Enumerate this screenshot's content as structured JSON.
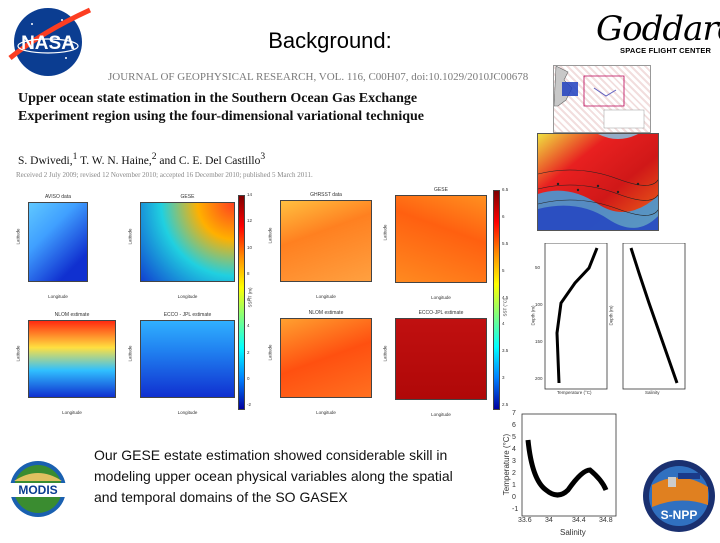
{
  "header": {
    "title": "Background:",
    "nasa_logo_text": "NASA",
    "goddard_name": "Goddard",
    "goddard_subtitle": "SPACE FLIGHT CENTER"
  },
  "paper": {
    "journal_line": "JOURNAL OF GEOPHYSICAL RESEARCH, VOL. 116, C00H07, doi:10.1029/2010JC006781, 20",
    "title": "Upper ocean state estimation in the Southern Ocean Gas Exchange Experiment region using the four-dimensional variational technique",
    "authors": "S. Dwivedi,",
    "authors_sup1": "1",
    "authors_rest": " T. W. N. Haine,",
    "authors_sup2": "2",
    "authors_rest2": " and C. E. Del Castillo",
    "authors_sup3": "3",
    "received": "Received 2 July 2009; revised 12 November 2010; accepted 16 December 2010; published 5 March 2011."
  },
  "figure": {
    "panels": [
      {
        "title": "AVISO data",
        "xlabel": "Longitude",
        "ylabel": "Latitude"
      },
      {
        "title": "GESE",
        "xlabel": "Longitude",
        "ylabel": "Latitude"
      },
      {
        "title": "GHRSST data",
        "xlabel": "Longitude",
        "ylabel": "Latitude"
      },
      {
        "title": "GESE",
        "xlabel": "Longitude",
        "ylabel": "Latitude"
      },
      {
        "title": "NLOM estimate",
        "xlabel": "Longitude",
        "ylabel": "Latitude"
      },
      {
        "title": "ECCO - JPL estimate",
        "xlabel": "Longitude",
        "ylabel": "Latitude"
      },
      {
        "title": "NLOM estimate",
        "xlabel": "Longitude",
        "ylabel": "Latitude"
      },
      {
        "title": "ECCO-JPL estimate",
        "xlabel": "Longitude",
        "ylabel": "Latitude"
      }
    ],
    "colorbar1_label": "SSHT (m)",
    "colorbar2_label": "SST (°C)",
    "colorbar1_ticks": [
      "14",
      "12",
      "10",
      "8",
      "6",
      "4",
      "2",
      "0",
      "-2"
    ],
    "colorbar2_ticks": [
      "6.5",
      "6",
      "5.5",
      "5",
      "4.5",
      "4",
      "3.5",
      "3",
      "2.5"
    ]
  },
  "profiles": {
    "left_xlabel": "Temperature (°C)",
    "right_xlabel": "Salinity",
    "ylabel": "Depth (m)",
    "yticks": [
      "50",
      "100",
      "150",
      "200"
    ]
  },
  "ts_diagram": {
    "ylabel": "Temperature (°C)",
    "xlabel": "Salinity",
    "yticks": [
      "7",
      "6",
      "5",
      "4",
      "3",
      "2",
      "1",
      "0",
      "-1"
    ],
    "xticks": [
      "33.6",
      "34",
      "34.4",
      "34.8"
    ]
  },
  "logos": {
    "modis": "MODIS",
    "snpp": "S-NPP"
  },
  "body": {
    "text": "Our GESE estate estimation showed considerable skill in modeling upper ocean physical variables along the spatial and temporal domains of the SO GASEX"
  },
  "colors": {
    "nasa_blue": "#0b3d91",
    "nasa_red": "#fc3d21",
    "heat_red": "#d7191c",
    "heat_blue": "#2b83ba"
  }
}
